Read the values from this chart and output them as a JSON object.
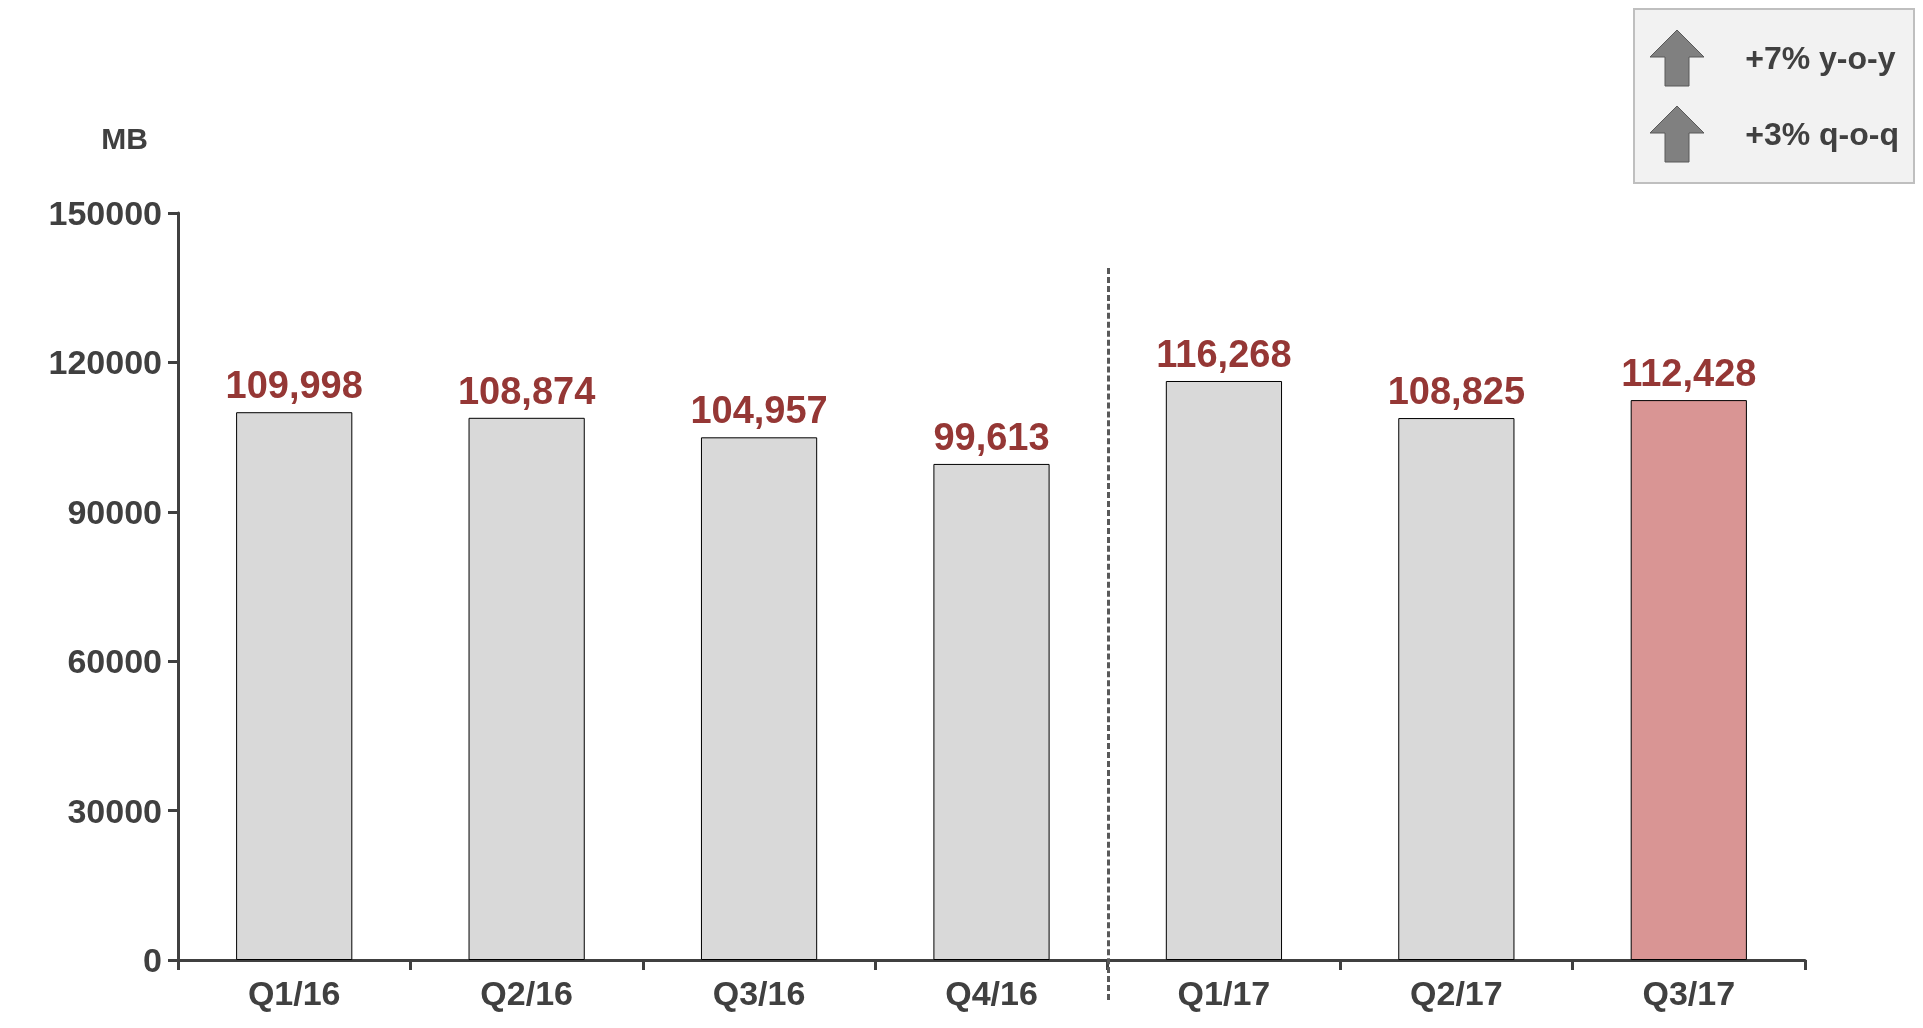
{
  "chart_data": {
    "type": "bar",
    "ylabel": "MB",
    "categories": [
      "Q1/16",
      "Q2/16",
      "Q3/16",
      "Q4/16",
      "Q1/17",
      "Q2/17",
      "Q3/17"
    ],
    "values": [
      109998,
      108874,
      104957,
      99613,
      116268,
      108825,
      112428
    ],
    "colors": [
      "#d9d9d9",
      "#d9d9d9",
      "#d9d9d9",
      "#d9d9d9",
      "#d9d9d9",
      "#d9d9d9",
      "#d99594"
    ],
    "value_labels": [
      "109,998",
      "108,874",
      "104,957",
      "99,613",
      "116,268",
      "108,825",
      "112,428"
    ],
    "ylim": [
      0,
      150000
    ],
    "yticks": [
      0,
      30000,
      60000,
      90000,
      120000,
      150000
    ],
    "grid": false,
    "annotations": [
      "+7% y-o-y",
      "+3% q-o-q"
    ]
  }
}
